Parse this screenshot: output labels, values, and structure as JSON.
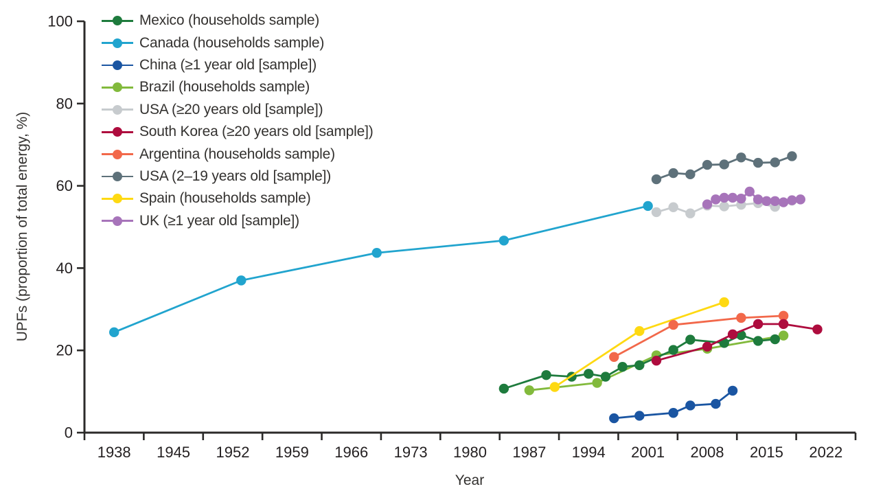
{
  "chart_data": {
    "type": "line",
    "title": "",
    "xlabel": "Year",
    "ylabel": "UPFs (proportion of total energy, %)",
    "x_ticks": [
      1938,
      1945,
      1952,
      1959,
      1966,
      1973,
      1980,
      1987,
      1994,
      2001,
      2008,
      2015,
      2022
    ],
    "x_range": [
      1934.5,
      2025.5
    ],
    "y_ticks": [
      0,
      20,
      40,
      60,
      80,
      100
    ],
    "ylim": [
      0,
      100
    ],
    "grid": false,
    "legend_position": "top-left-inside",
    "axis_color": "#2b2a29",
    "tick_text_color": "#231f20",
    "series": [
      {
        "name": "Mexico (households sample)",
        "color": "#1e7b3d",
        "points": [
          [
            1984,
            10.7
          ],
          [
            1989,
            14.0
          ],
          [
            1992,
            13.6
          ],
          [
            1994,
            14.3
          ],
          [
            1996,
            13.6
          ],
          [
            1998,
            16.0
          ],
          [
            2000,
            16.4
          ],
          [
            2004,
            20.1
          ],
          [
            2006,
            22.6
          ],
          [
            2010,
            21.8
          ],
          [
            2012,
            23.7
          ],
          [
            2014,
            22.3
          ],
          [
            2016,
            22.7
          ]
        ]
      },
      {
        "name": "Canada (households sample)",
        "color": "#21a4ce",
        "points": [
          [
            1938,
            24.4
          ],
          [
            1953,
            37.0
          ],
          [
            1969,
            43.7
          ],
          [
            1984,
            46.7
          ],
          [
            2001,
            55.1
          ]
        ]
      },
      {
        "name": "China (≥1 year old [sample])",
        "color": "#1a55a2",
        "points": [
          [
            1997,
            3.5
          ],
          [
            2000,
            4.1
          ],
          [
            2004,
            4.8
          ],
          [
            2006,
            6.6
          ],
          [
            2009,
            7.0
          ],
          [
            2011,
            10.2
          ]
        ]
      },
      {
        "name": "Brazil (households sample)",
        "color": "#82ba3c",
        "points": [
          [
            1987,
            10.3
          ],
          [
            1995,
            12.1
          ],
          [
            2002,
            18.8
          ],
          [
            2008,
            20.4
          ],
          [
            2017,
            23.6
          ]
        ]
      },
      {
        "name": "USA (≥20 years old [sample])",
        "color": "#c7cbce",
        "points": [
          [
            2002,
            53.6
          ],
          [
            2004,
            54.8
          ],
          [
            2006,
            53.3
          ],
          [
            2008,
            55.2
          ],
          [
            2010,
            55.0
          ],
          [
            2012,
            55.4
          ],
          [
            2014,
            55.8
          ],
          [
            2016,
            54.9
          ],
          [
            2018,
            56.4
          ]
        ]
      },
      {
        "name": "South Korea (≥20 years old [sample])",
        "color": "#ae0c3e",
        "points": [
          [
            2002,
            17.5
          ],
          [
            2008,
            20.9
          ],
          [
            2011,
            23.9
          ],
          [
            2014,
            26.4
          ],
          [
            2017,
            26.4
          ],
          [
            2021,
            25.1
          ]
        ]
      },
      {
        "name": "Argentina (households sample)",
        "color": "#f2684a",
        "points": [
          [
            1997,
            18.4
          ],
          [
            2004,
            26.2
          ],
          [
            2012,
            27.9
          ],
          [
            2017,
            28.4
          ]
        ]
      },
      {
        "name": "USA (2–19 years old [sample])",
        "color": "#5e717a",
        "points": [
          [
            2002,
            61.6
          ],
          [
            2004,
            63.1
          ],
          [
            2006,
            62.8
          ],
          [
            2008,
            65.1
          ],
          [
            2010,
            65.2
          ],
          [
            2012,
            66.9
          ],
          [
            2014,
            65.6
          ],
          [
            2016,
            65.7
          ],
          [
            2018,
            67.2
          ]
        ]
      },
      {
        "name": "Spain (households sample)",
        "color": "#fed912",
        "points": [
          [
            1990,
            11.1
          ],
          [
            2000,
            24.7
          ],
          [
            2010,
            31.7
          ]
        ]
      },
      {
        "name": "UK (≥1 year old [sample])",
        "color": "#a774ba",
        "points": [
          [
            2008,
            55.5
          ],
          [
            2009,
            56.7
          ],
          [
            2010,
            57.1
          ],
          [
            2011,
            57.1
          ],
          [
            2012,
            56.9
          ],
          [
            2013,
            58.6
          ],
          [
            2014,
            56.7
          ],
          [
            2015,
            56.3
          ],
          [
            2016,
            56.3
          ],
          [
            2017,
            56.0
          ],
          [
            2018,
            56.5
          ],
          [
            2019,
            56.7
          ]
        ]
      }
    ]
  }
}
